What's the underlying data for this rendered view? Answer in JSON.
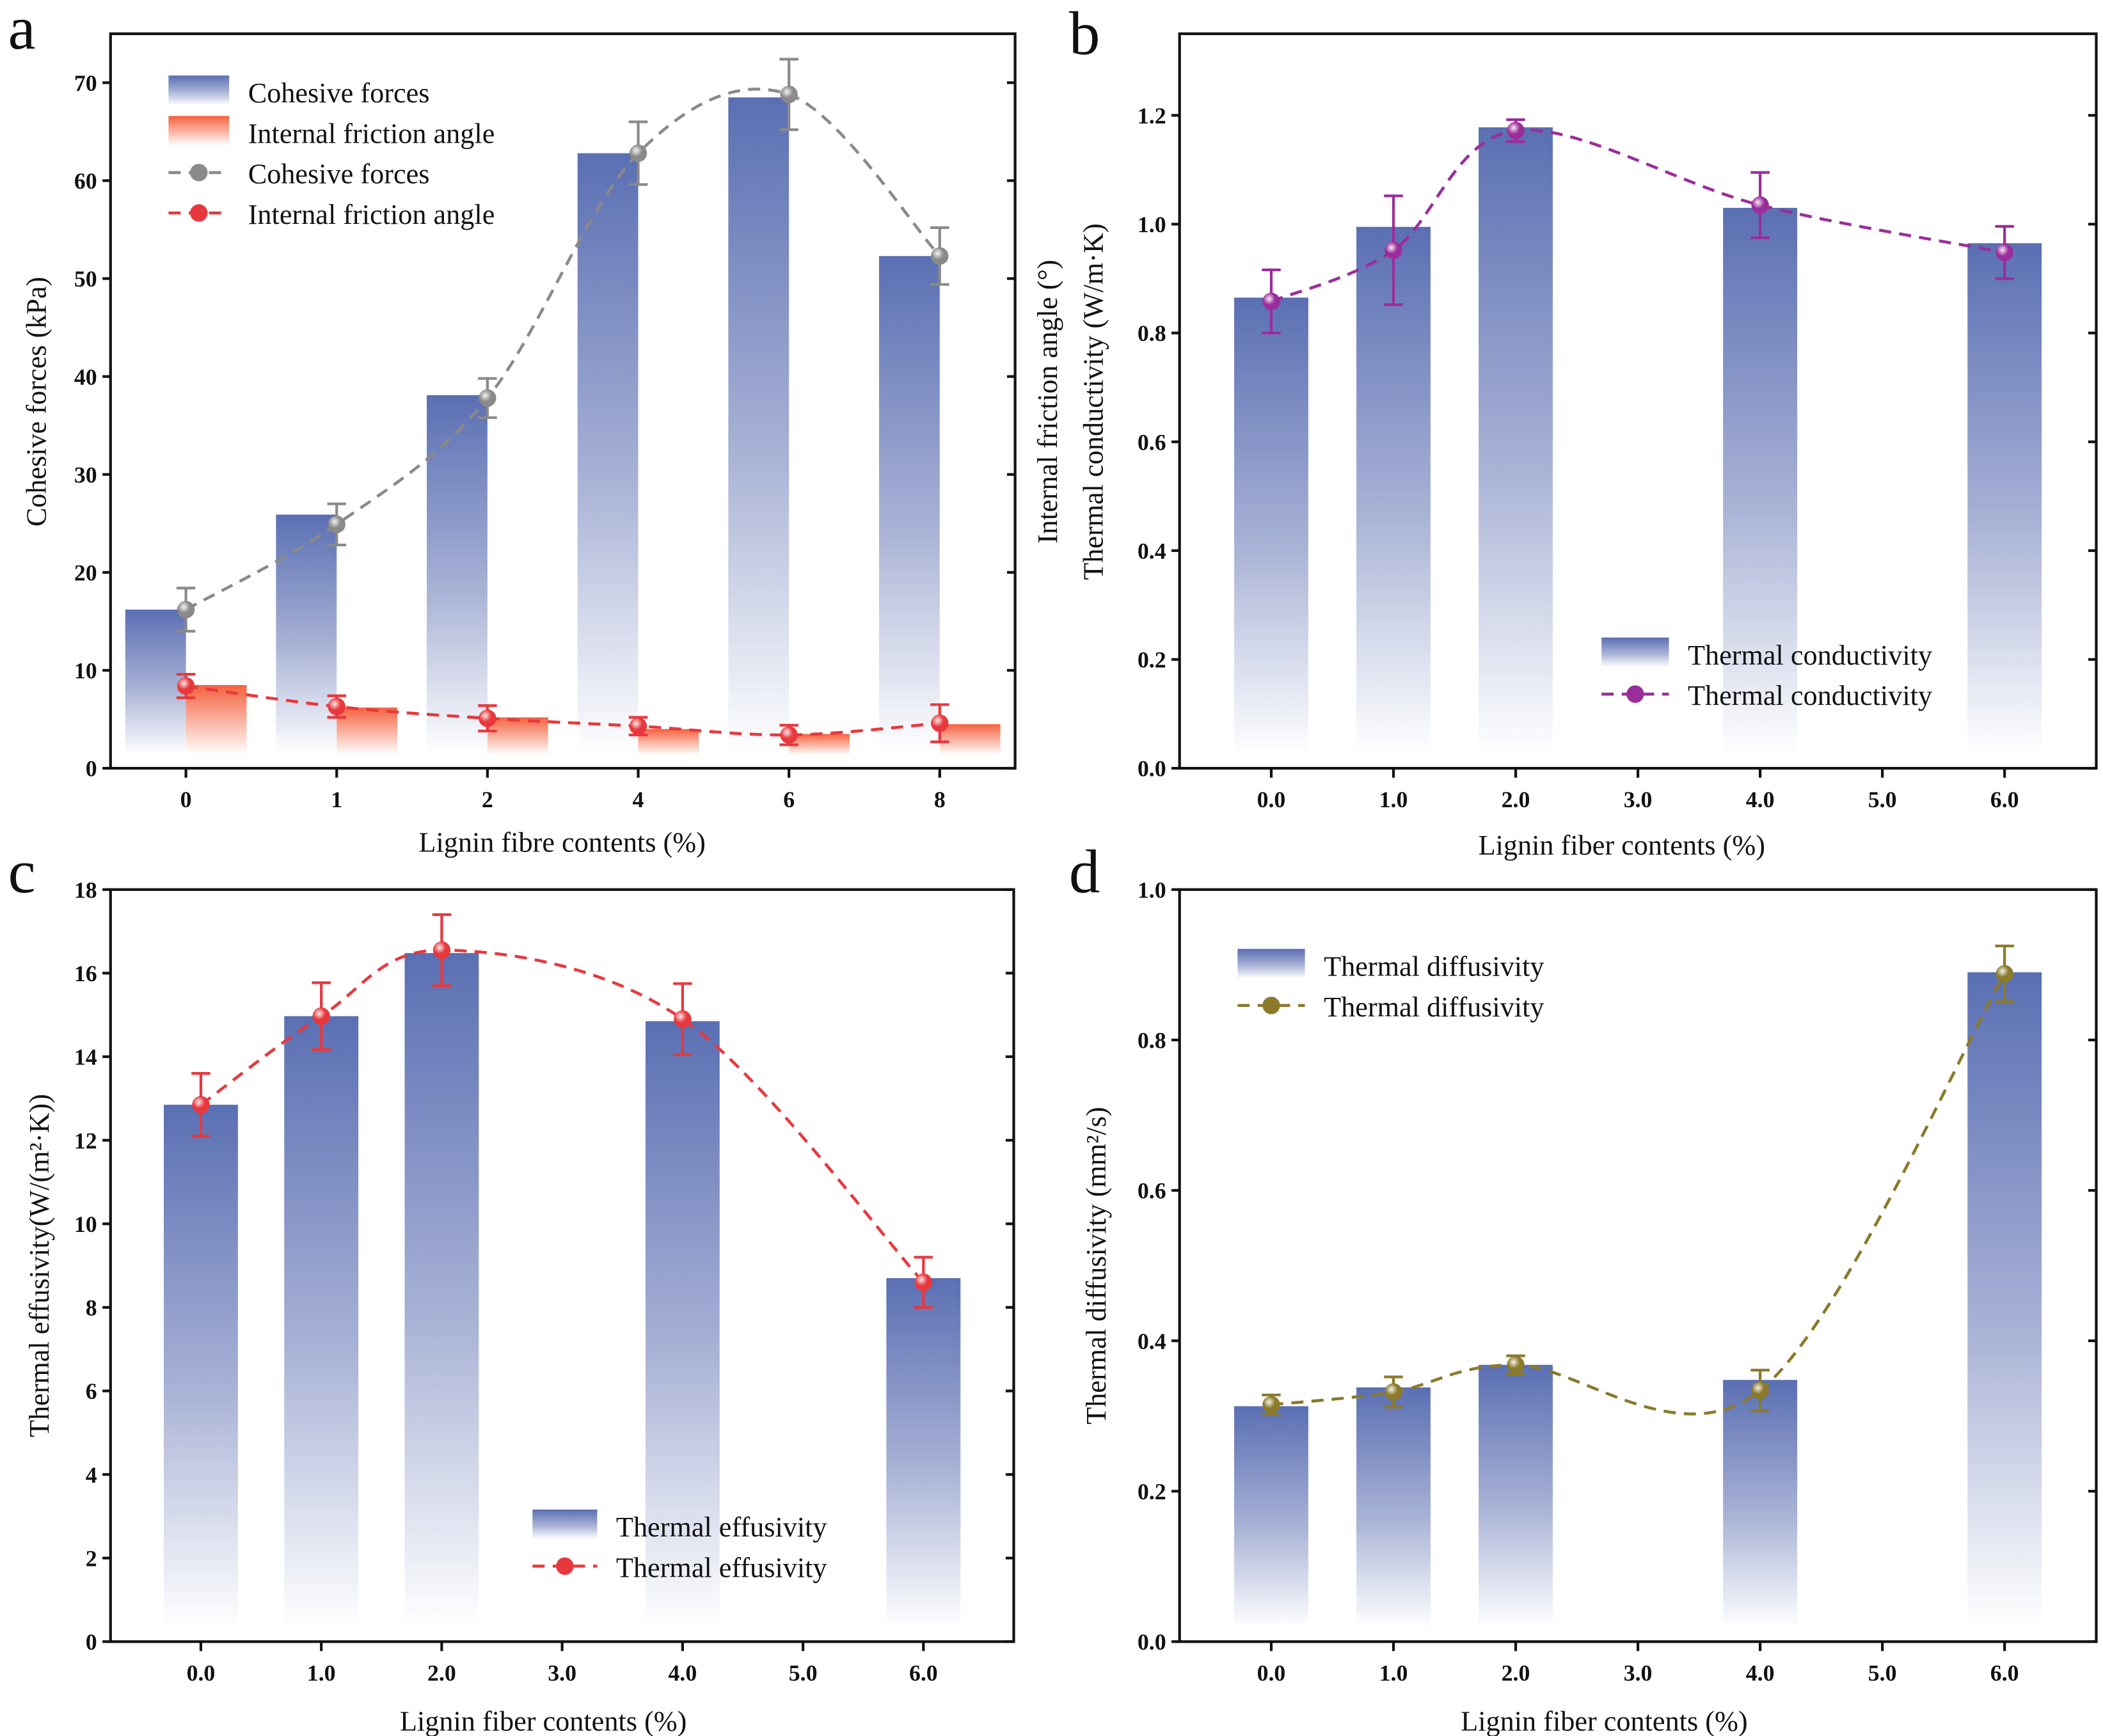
{
  "chart_data": [
    {
      "panel": "a",
      "type": "bar+line",
      "xlabel": "Lignin fibre contents (%)",
      "ylabel": "Cohesive forces (kPa)",
      "ylabel_right": "Internal friction angle (°)",
      "categories": [
        "0",
        "1",
        "2",
        "4",
        "6",
        "8"
      ],
      "ylim": [
        0,
        75
      ],
      "yticks": [
        0,
        10,
        20,
        30,
        40,
        50,
        60,
        70
      ],
      "legend_position": "top-left",
      "bars": [
        {
          "name": "Cohesive forces",
          "color": "#5a6fb3",
          "offset": "left",
          "values": [
            16.2,
            25.9,
            38.1,
            62.8,
            68.5,
            52.3
          ]
        },
        {
          "name": "Internal friction angle",
          "color": "#f4623e",
          "offset": "right",
          "values": [
            8.5,
            6.2,
            5.2,
            4.0,
            3.5,
            4.5
          ]
        }
      ],
      "series": [
        {
          "name": "Cohesive forces",
          "color": "#8a8a8a",
          "values": [
            16.2,
            24.9,
            37.8,
            62.8,
            68.8,
            52.3
          ],
          "errors": [
            2.2,
            2.1,
            2.0,
            3.2,
            3.6,
            2.9
          ]
        },
        {
          "name": "Internal friction angle",
          "color": "#e8383d",
          "values": [
            8.4,
            6.3,
            5.1,
            4.3,
            3.4,
            4.6
          ],
          "errors": [
            1.2,
            1.1,
            1.3,
            0.9,
            1.0,
            1.9
          ]
        }
      ]
    },
    {
      "panel": "b",
      "type": "bar+line",
      "xlabel": "Lignin fiber contents (%)",
      "ylabel": "Thermal conductivity (W/m·K)",
      "x": [
        0,
        1,
        2,
        4,
        6
      ],
      "xticks": [
        "0.0",
        "1.0",
        "2.0",
        "3.0",
        "4.0",
        "5.0",
        "6.0"
      ],
      "xlim": [
        -0.75,
        6.75
      ],
      "ylim": [
        0,
        1.35
      ],
      "yticks": [
        "0.0",
        "0.2",
        "0.4",
        "0.6",
        "0.8",
        "1.0",
        "1.2"
      ],
      "legend_position": "bottom-right",
      "bars": [
        {
          "name": "Thermal conductivity",
          "color": "#5a6fb3",
          "values": [
            0.865,
            0.995,
            1.178,
            1.03,
            0.965
          ]
        }
      ],
      "series": [
        {
          "name": "Thermal conductivity",
          "color": "#9b2d9b",
          "values": [
            0.858,
            0.952,
            1.172,
            1.035,
            0.948
          ],
          "errors": [
            0.058,
            0.1,
            0.02,
            0.06,
            0.048
          ]
        }
      ]
    },
    {
      "panel": "c",
      "type": "bar+line",
      "xlabel": "Lignin fiber contents (%)",
      "ylabel": "Thermal effusivity(W/(m²·K))",
      "x": [
        0,
        1,
        2,
        4,
        6
      ],
      "xticks": [
        "0.0",
        "1.0",
        "2.0",
        "3.0",
        "4.0",
        "5.0",
        "6.0"
      ],
      "xlim": [
        -0.75,
        6.75
      ],
      "ylim": [
        0,
        18
      ],
      "yticks": [
        "0",
        "2",
        "4",
        "6",
        "8",
        "10",
        "12",
        "14",
        "16",
        "18"
      ],
      "legend_position": "bottom-right",
      "bars": [
        {
          "name": "Thermal effusivity",
          "color": "#5a6fb3",
          "values": [
            12.85,
            14.97,
            16.48,
            14.85,
            8.7
          ]
        }
      ],
      "series": [
        {
          "name": "Thermal effusivity",
          "color": "#e8383d",
          "values": [
            12.85,
            14.97,
            16.55,
            14.9,
            8.6
          ],
          "errors": [
            0.75,
            0.8,
            0.85,
            0.85,
            0.6
          ]
        }
      ]
    },
    {
      "panel": "d",
      "type": "bar+line",
      "xlabel": "Lignin fiber contents (%)",
      "ylabel": "Thermal diffusivity (mm²/s)",
      "x": [
        0,
        1,
        2,
        4,
        6
      ],
      "xticks": [
        "0.0",
        "1.0",
        "2.0",
        "3.0",
        "4.0",
        "5.0",
        "6.0"
      ],
      "xlim": [
        -0.75,
        6.75
      ],
      "ylim": [
        0,
        1.0
      ],
      "yticks": [
        "0.0",
        "0.2",
        "0.4",
        "0.6",
        "0.8",
        "1.0"
      ],
      "legend_position": "top-left",
      "bars": [
        {
          "name": "Thermal diffusivity",
          "color": "#5a6fb3",
          "values": [
            0.313,
            0.338,
            0.368,
            0.348,
            0.89
          ]
        }
      ],
      "series": [
        {
          "name": "Thermal diffusivity",
          "color": "#8a7a2a",
          "values": [
            0.315,
            0.332,
            0.368,
            0.334,
            0.888
          ],
          "errors": [
            0.013,
            0.02,
            0.012,
            0.027,
            0.037
          ]
        }
      ]
    }
  ]
}
